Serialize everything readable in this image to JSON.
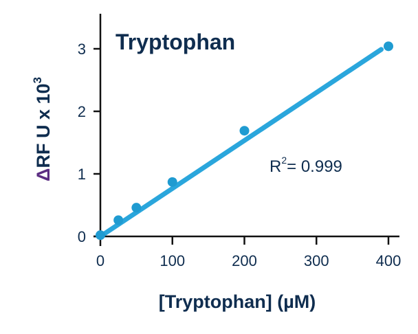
{
  "chart_data": {
    "type": "scatter",
    "title": "Tryptophan",
    "xlabel": "[Tryptophan] (µM)",
    "ylabel": "ΔRF U x 10³",
    "ylabel_parts": {
      "delta": "Δ",
      "main": "RF U x 10",
      "sup": "3"
    },
    "x_ticks": [
      "0",
      "100",
      "200",
      "300",
      "400"
    ],
    "y_ticks": [
      "0",
      "1",
      "2",
      "3"
    ],
    "xlim": [
      0,
      400
    ],
    "ylim": [
      0,
      3.5
    ],
    "grid": false,
    "legend": null,
    "series": [
      {
        "name": "Tryptophan",
        "x": [
          0,
          25,
          50,
          100,
          200,
          400
        ],
        "y": [
          0.02,
          0.26,
          0.46,
          0.87,
          1.69,
          3.04
        ]
      }
    ],
    "fit_line": {
      "type": "linear",
      "x": [
        0,
        390
      ],
      "y": [
        0.0,
        2.99
      ]
    },
    "annotations": [
      {
        "text_main": "R",
        "text_sup": "2",
        "text_rest": "= 0.999",
        "x": 270,
        "y": 1.1
      }
    ],
    "colors": {
      "series": "#2aa6dc",
      "text": "#0f2d4f",
      "delta": "#5b2d82",
      "axis": "#111111"
    }
  }
}
